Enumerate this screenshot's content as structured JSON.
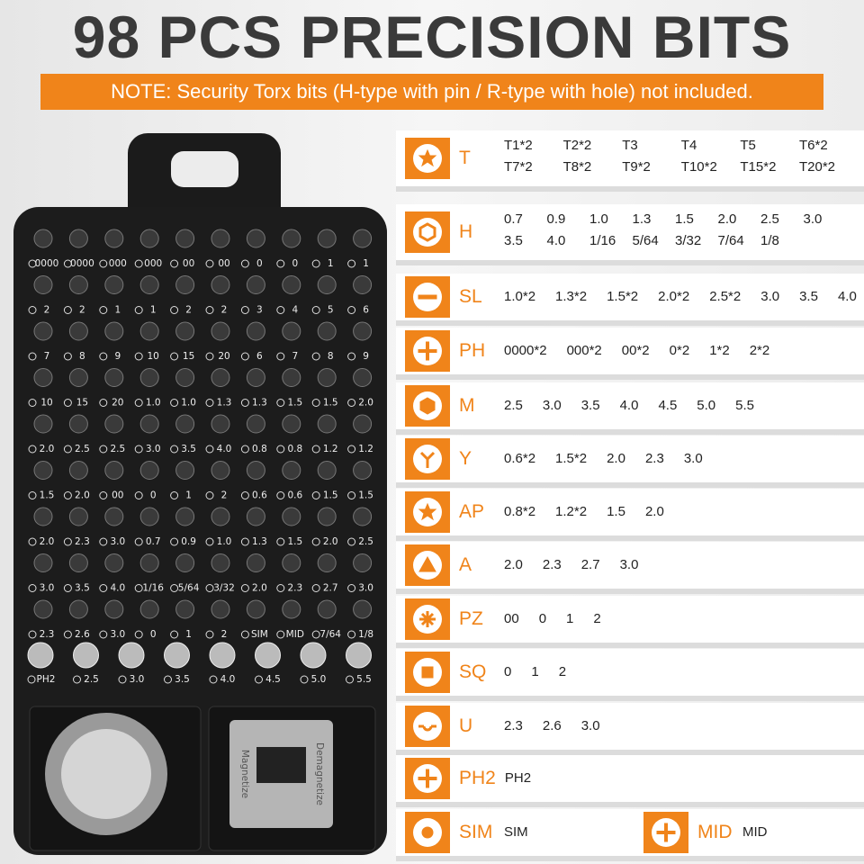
{
  "header": {
    "title": "98 PCS PRECISION BITS",
    "note": "NOTE: Security Torx bits (H-type with pin / R-type with hole) not included."
  },
  "case": {
    "rows": [
      [
        "0000",
        "0000",
        "000",
        "000",
        "00",
        "00",
        "0",
        "0",
        "1",
        "1"
      ],
      [
        "2",
        "2",
        "1",
        "1",
        "2",
        "2",
        "3",
        "4",
        "5",
        "6"
      ],
      [
        "7",
        "8",
        "9",
        "10",
        "15",
        "20",
        "6",
        "7",
        "8",
        "9"
      ],
      [
        "10",
        "15",
        "20",
        "1.0",
        "1.0",
        "1.3",
        "1.3",
        "1.5",
        "1.5",
        "2.0"
      ],
      [
        "2.0",
        "2.5",
        "2.5",
        "3.0",
        "3.5",
        "4.0",
        "0.8",
        "0.8",
        "1.2",
        "1.2"
      ],
      [
        "1.5",
        "2.0",
        "00",
        "0",
        "1",
        "2",
        "0.6",
        "0.6",
        "1.5",
        "1.5"
      ],
      [
        "2.0",
        "2.3",
        "3.0",
        "0.7",
        "0.9",
        "1.0",
        "1.3",
        "1.5",
        "2.0",
        "2.5"
      ],
      [
        "3.0",
        "3.5",
        "4.0",
        "1/16",
        "5/64",
        "3/32",
        "2.0",
        "2.3",
        "2.7",
        "3.0"
      ],
      [
        "2.3",
        "2.6",
        "3.0",
        "0",
        "1",
        "2",
        "SIM",
        "MID",
        "7/64",
        "1/8"
      ]
    ],
    "large_row": [
      "PH2",
      "2.5",
      "3.0",
      "3.5",
      "4.0",
      "4.5",
      "5.0",
      "5.5"
    ],
    "magnetizer": [
      "Magnetize",
      "Demagnetize"
    ]
  },
  "table": {
    "rows": [
      {
        "cells": [
          {
            "code": "T",
            "sizes": [
              [
                "T1*2",
                "T2*2",
                "T3",
                "T4",
                "T5",
                "T6*2"
              ],
              [
                "T7*2",
                "T8*2",
                "T9*2",
                "T10*2",
                "T15*2",
                "T20*2"
              ]
            ]
          }
        ]
      },
      {
        "cells": [
          {
            "code": "H",
            "sizes": [
              [
                "0.7",
                "0.9",
                "1.0",
                "1.3",
                "1.5",
                "2.0",
                "2.5",
                "3.0"
              ],
              [
                "3.5",
                "4.0",
                "1/16",
                "5/64",
                "3/32",
                "7/64",
                "1/8"
              ]
            ]
          }
        ]
      },
      {
        "cells": [
          {
            "code": "SL",
            "sizes": [
              [
                "1.0*2",
                "1.3*2",
                "1.5*2",
                "2.0*2",
                "2.5*2",
                "3.0",
                "3.5",
                "4.0"
              ]
            ]
          }
        ]
      },
      {
        "cells": [
          {
            "code": "PH",
            "sizes": [
              [
                "0000*2",
                "000*2",
                "00*2",
                "0*2",
                "1*2",
                "2*2"
              ]
            ]
          }
        ]
      },
      {
        "cells": [
          {
            "code": "M",
            "sizes": [
              [
                "2.5",
                "3.0",
                "3.5",
                "4.0",
                "4.5",
                "5.0",
                "5.5"
              ]
            ]
          }
        ]
      },
      {
        "cells": [
          {
            "code": "Y",
            "sizes": [
              [
                "0.6*2",
                "1.5*2",
                "2.0",
                "2.3",
                "3.0"
              ]
            ]
          }
        ]
      },
      {
        "cells": [
          {
            "code": "AP",
            "sizes": [
              [
                "0.8*2",
                "1.2*2",
                "1.5",
                "2.0"
              ]
            ]
          }
        ]
      },
      {
        "cells": [
          {
            "code": "A",
            "sizes": [
              [
                "2.0",
                "2.3",
                "2.7",
                "3.0"
              ]
            ]
          }
        ]
      },
      {
        "cells": [
          {
            "code": "PZ",
            "sizes": [
              [
                "00",
                "0",
                "1",
                "2"
              ]
            ]
          }
        ]
      },
      {
        "cells": [
          {
            "code": "SQ",
            "sizes": [
              [
                "0",
                "1",
                "2"
              ]
            ]
          }
        ]
      },
      {
        "cells": [
          {
            "code": "U",
            "sizes": [
              [
                "2.3",
                "2.6",
                "3.0"
              ]
            ]
          }
        ]
      },
      {
        "cells": [
          {
            "code": "PH2",
            "sizes": [
              [
                "PH2"
              ]
            ]
          }
        ]
      },
      {
        "cells": [
          {
            "code": "SIM",
            "sizes": [
              [
                "SIM"
              ]
            ]
          },
          {
            "code": "MID",
            "sizes": [
              [
                "MID"
              ]
            ]
          }
        ]
      }
    ]
  }
}
